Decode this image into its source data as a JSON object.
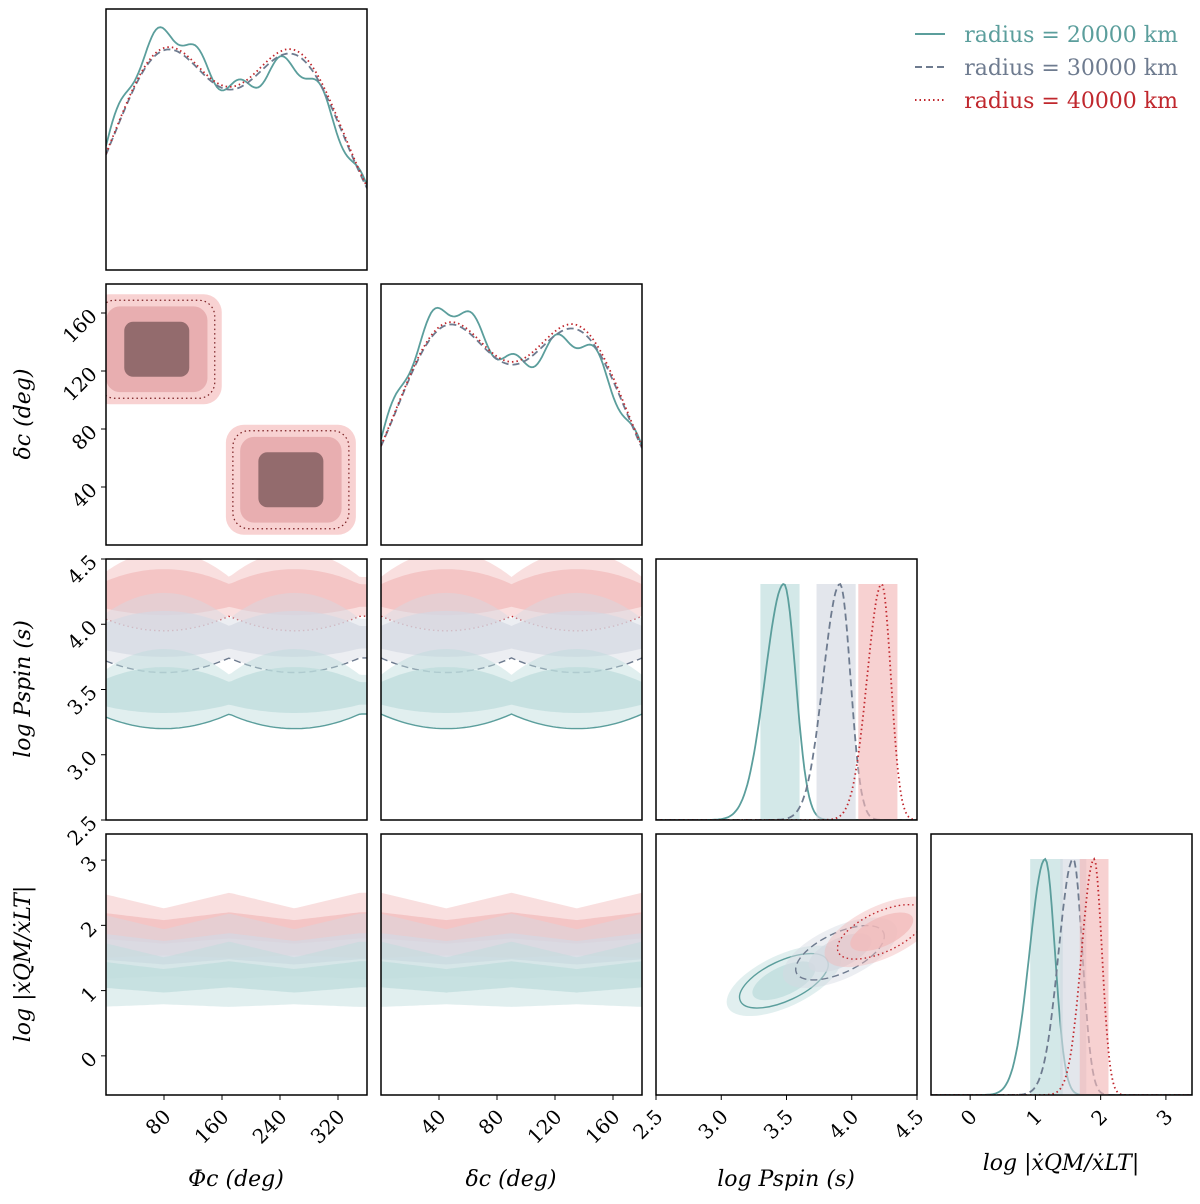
{
  "chart_data": {
    "type": "corner",
    "parameters": [
      {
        "key": "phi",
        "label": "Φc (deg)",
        "range": [
          0,
          360
        ],
        "ticks": [
          80,
          160,
          240,
          320
        ]
      },
      {
        "key": "delta",
        "label": "δc (deg)",
        "range": [
          0,
          180
        ],
        "ticks": [
          40,
          80,
          120,
          160
        ]
      },
      {
        "key": "logP",
        "label": "log Pspin (s)",
        "range": [
          2.5,
          4.5
        ],
        "ticks": [
          2.5,
          3.0,
          3.5,
          4.0,
          4.5
        ]
      },
      {
        "key": "logX",
        "label": "log |ẋQM/ẋLT|",
        "range": [
          -0.6,
          3.4
        ],
        "ticks": [
          0,
          1,
          2,
          3
        ]
      }
    ],
    "series": [
      {
        "name": "radius = 20000 km",
        "color": "#5b9e9c",
        "fill": "#bcdcdc",
        "dash": "solid",
        "logP_peak": 3.48,
        "logP_sigma": 0.09,
        "logX_peak": 1.15,
        "logX_sigma": 0.15,
        "logP_interval": [
          3.3,
          3.6
        ],
        "logX_interval": [
          0.92,
          1.42
        ]
      },
      {
        "name": "radius = 30000 km",
        "color": "#6e7b8f",
        "fill": "#d4d9e2",
        "dash": "dashed",
        "logP_peak": 3.91,
        "logP_sigma": 0.08,
        "logX_peak": 1.58,
        "logX_sigma": 0.14,
        "logP_interval": [
          3.73,
          4.03
        ],
        "logX_interval": [
          1.38,
          1.78
        ]
      },
      {
        "name": "radius = 40000 km",
        "color": "#c0272d",
        "fill": "#f2b9b9",
        "dash": "dotted",
        "logP_peak": 4.23,
        "logP_sigma": 0.07,
        "logX_peak": 1.9,
        "logX_sigma": 0.12,
        "logP_interval": [
          4.05,
          4.35
        ],
        "logX_interval": [
          1.68,
          2.12
        ]
      }
    ],
    "phi_marginal": {
      "peaks": [
        80,
        260
      ],
      "dip": 180
    },
    "delta_marginal": {
      "peaks": [
        45,
        135
      ],
      "dip": 90
    }
  }
}
